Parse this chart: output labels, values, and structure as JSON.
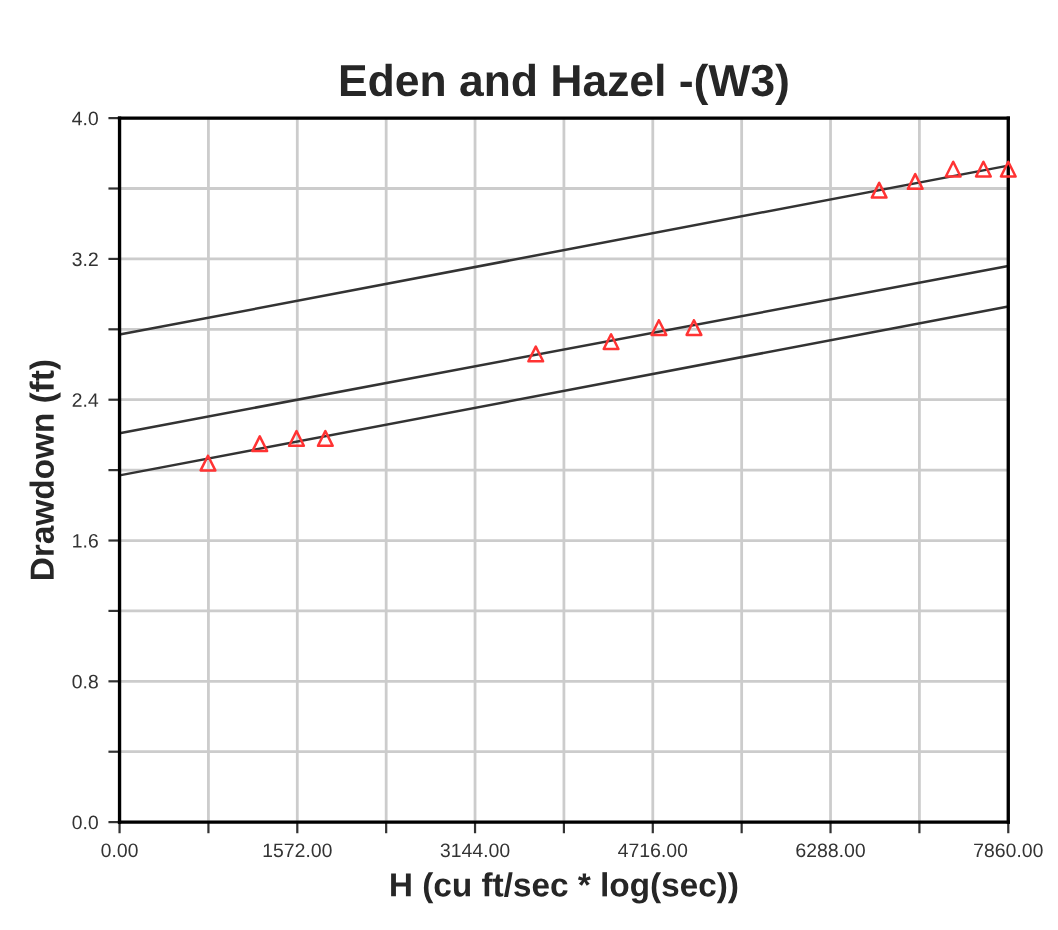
{
  "chart_data": {
    "type": "scatter",
    "title": "Eden and Hazel -(W3)",
    "xlabel": "H (cu ft/sec * log(sec))",
    "ylabel": "Drawdown (ft)",
    "series": [
      {
        "color": "#ff3333",
        "marker": "triangle",
        "x": [
          782,
          1240,
          1565,
          1820,
          3681,
          4347,
          4770,
          5080,
          6718,
          7037,
          7373,
          7640,
          7860
        ],
        "values": [
          2.04,
          2.15,
          2.18,
          2.18,
          2.66,
          2.73,
          2.81,
          2.81,
          3.59,
          3.64,
          3.71,
          3.71,
          3.71
        ]
      },
      {
        "type": "line",
        "color": "#333333",
        "x": [
          0,
          7860
        ],
        "values": [
          2.77,
          3.73
        ]
      },
      {
        "type": "line",
        "color": "#333333",
        "x": [
          0,
          7860
        ],
        "values": [
          2.21,
          3.16
        ]
      },
      {
        "type": "line",
        "color": "#333333",
        "x": [
          0,
          7860
        ],
        "values": [
          1.97,
          2.93
        ]
      }
    ],
    "xlim": [
      0,
      7860
    ],
    "ylim": [
      0,
      4.0
    ],
    "xticks": [
      {
        "value": 0,
        "label": "0.00"
      },
      {
        "value": 786,
        "label": null
      },
      {
        "value": 1572,
        "label": "1572.00"
      },
      {
        "value": 2358,
        "label": null
      },
      {
        "value": 3144,
        "label": "3144.00"
      },
      {
        "value": 3930,
        "label": null
      },
      {
        "value": 4716,
        "label": "4716.00"
      },
      {
        "value": 5502,
        "label": null
      },
      {
        "value": 6288,
        "label": "6288.00"
      },
      {
        "value": 7074,
        "label": null
      },
      {
        "value": 7860,
        "label": "7860.00"
      }
    ],
    "yticks": [
      {
        "value": 0,
        "label": "0.0"
      },
      {
        "value": 0.4,
        "label": null
      },
      {
        "value": 0.8,
        "label": "0.8"
      },
      {
        "value": 1.2,
        "label": null
      },
      {
        "value": 1.6,
        "label": "1.6"
      },
      {
        "value": 2.0,
        "label": null
      },
      {
        "value": 2.4,
        "label": "2.4"
      },
      {
        "value": 2.8,
        "label": null
      },
      {
        "value": 3.2,
        "label": "3.2"
      },
      {
        "value": 3.6,
        "label": null
      },
      {
        "value": 4.0,
        "label": "4.0"
      }
    ],
    "grid": true,
    "legend": false
  }
}
